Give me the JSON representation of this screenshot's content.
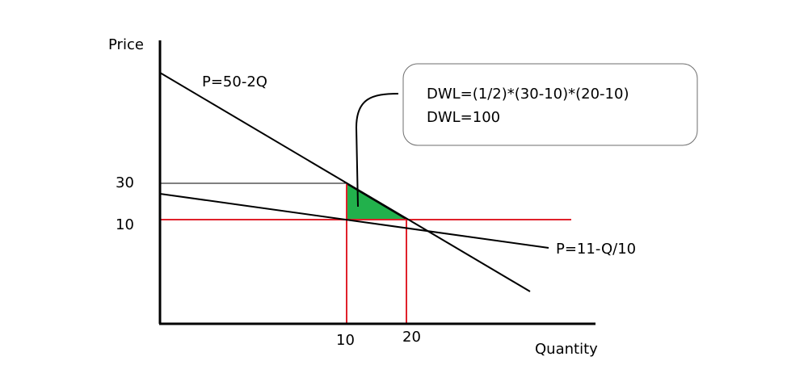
{
  "axes": {
    "y_label": "Price",
    "x_label": "Quantity"
  },
  "ticks": {
    "y": [
      "30",
      "10"
    ],
    "x": [
      "10",
      "20"
    ]
  },
  "curves": {
    "demand_label": "P=50-2Q",
    "mc_label": "P=11-Q/10"
  },
  "callout": {
    "line1": "DWL=(1/2)*(30-10)*(20-10)",
    "line2": "DWL=100"
  },
  "colors": {
    "axis": "#000000",
    "curve": "#000000",
    "guide_red": "#e0212b",
    "dwl_fill": "#22b14c",
    "callout_border": "#6e6e6e"
  }
}
